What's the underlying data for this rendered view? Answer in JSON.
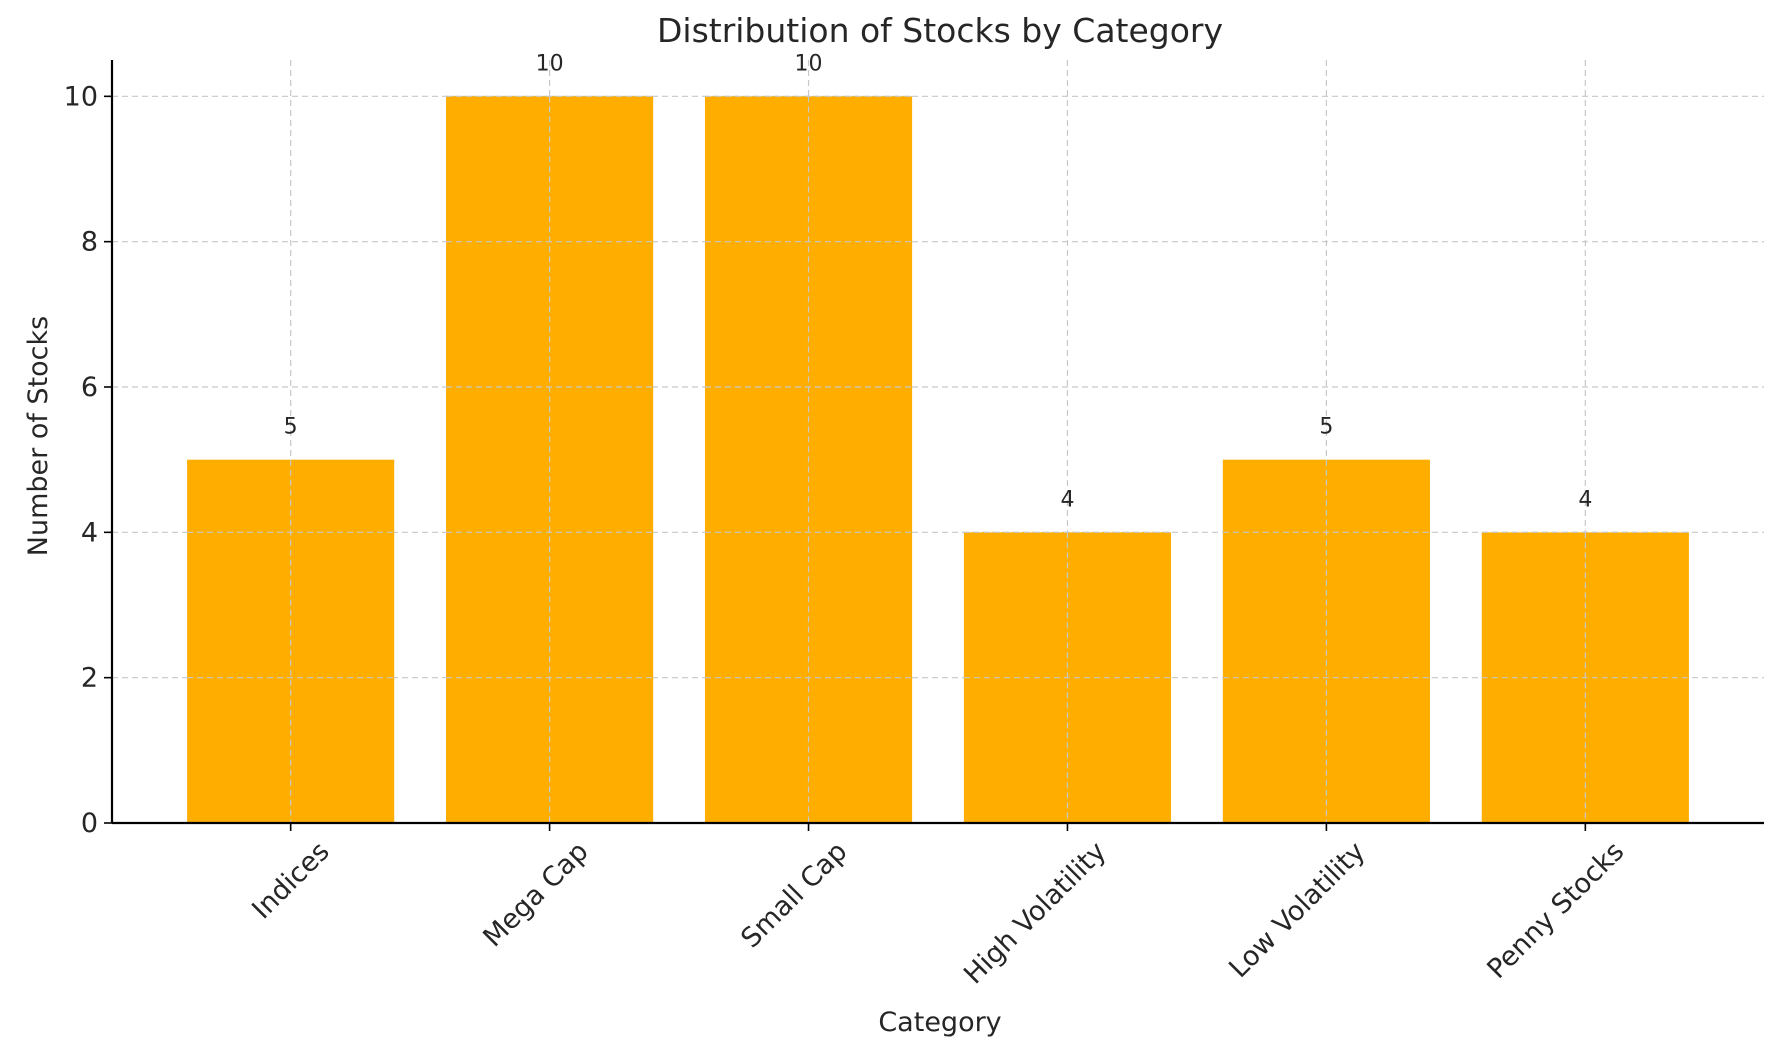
{
  "chart_data": {
    "type": "bar",
    "title": "Distribution of Stocks by Category",
    "xlabel": "Category",
    "ylabel": "Number of Stocks",
    "categories": [
      "Indices",
      "Mega Cap",
      "Small Cap",
      "High Volatility",
      "Low Volatility",
      "Penny Stocks"
    ],
    "values": [
      5,
      10,
      10,
      4,
      5,
      4
    ],
    "data_labels": [
      "5",
      "10",
      "10",
      "4",
      "5",
      "4"
    ],
    "ylim": [
      0,
      10.5
    ],
    "yticks": [
      0,
      2,
      4,
      6,
      8,
      10
    ],
    "ytick_labels": [
      "0",
      "2",
      "4",
      "6",
      "8",
      "10"
    ],
    "grid": true,
    "bar_color": "#FFAE00",
    "xtick_rotation_deg": 45
  }
}
